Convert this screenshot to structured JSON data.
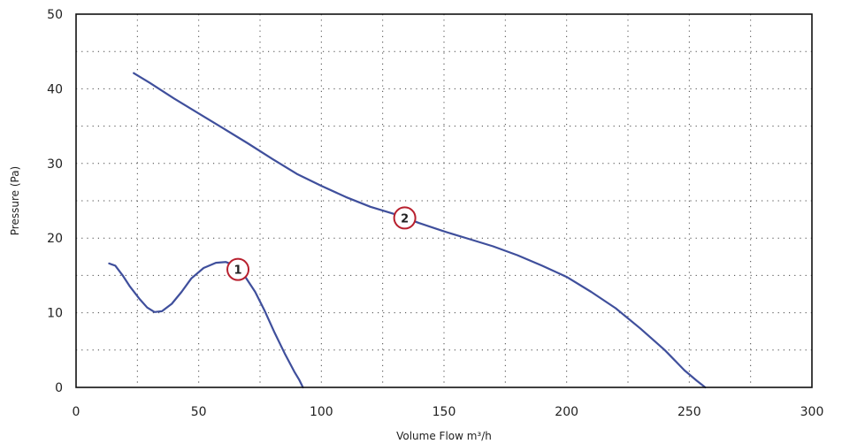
{
  "chart_data": {
    "type": "line",
    "title": "",
    "xlabel": "Volume Flow m³/h",
    "ylabel": "Pressure (Pa)",
    "xlim": [
      0,
      300
    ],
    "ylim": [
      0,
      50
    ],
    "x_ticks": [
      0,
      50,
      100,
      150,
      200,
      250,
      300
    ],
    "y_ticks": [
      0,
      10,
      20,
      30,
      40,
      50
    ],
    "x_minor_grid": [
      25,
      50,
      75,
      100,
      125,
      150,
      175,
      200,
      225,
      250,
      275
    ],
    "y_minor_grid": [
      5,
      10,
      15,
      20,
      25,
      30,
      35,
      40,
      45
    ],
    "grid": true,
    "legend": "none",
    "line_color": "#3f4f9c",
    "marker_color": "#b8202e",
    "series": [
      {
        "marker": "1",
        "marker_at": [
          66,
          15.8
        ],
        "points": [
          [
            13.5,
            16.6
          ],
          [
            16,
            16.3
          ],
          [
            19,
            15.0
          ],
          [
            22,
            13.5
          ],
          [
            26,
            11.8
          ],
          [
            29,
            10.7
          ],
          [
            32,
            10.1
          ],
          [
            35,
            10.2
          ],
          [
            39,
            11.2
          ],
          [
            43,
            12.8
          ],
          [
            47,
            14.6
          ],
          [
            52,
            16.0
          ],
          [
            57,
            16.7
          ],
          [
            61,
            16.8
          ],
          [
            65,
            16.3
          ],
          [
            69,
            14.8
          ],
          [
            73,
            12.8
          ],
          [
            77,
            10.2
          ],
          [
            81,
            7.3
          ],
          [
            85,
            4.6
          ],
          [
            89,
            2.1
          ],
          [
            91,
            1.0
          ],
          [
            92.5,
            0
          ]
        ]
      },
      {
        "marker": "2",
        "marker_at": [
          134,
          22.7
        ],
        "points": [
          [
            23.5,
            42.1
          ],
          [
            30,
            40.8
          ],
          [
            40,
            38.7
          ],
          [
            50,
            36.7
          ],
          [
            60,
            34.7
          ],
          [
            70,
            32.7
          ],
          [
            80,
            30.6
          ],
          [
            90,
            28.6
          ],
          [
            100,
            27.0
          ],
          [
            110,
            25.5
          ],
          [
            120,
            24.2
          ],
          [
            130,
            23.2
          ],
          [
            140,
            22.0
          ],
          [
            150,
            20.9
          ],
          [
            160,
            19.9
          ],
          [
            170,
            18.9
          ],
          [
            180,
            17.7
          ],
          [
            190,
            16.3
          ],
          [
            200,
            14.8
          ],
          [
            210,
            12.8
          ],
          [
            220,
            10.6
          ],
          [
            230,
            7.9
          ],
          [
            240,
            5.0
          ],
          [
            248,
            2.3
          ],
          [
            253,
            0.9
          ],
          [
            256.5,
            0
          ]
        ]
      }
    ]
  }
}
